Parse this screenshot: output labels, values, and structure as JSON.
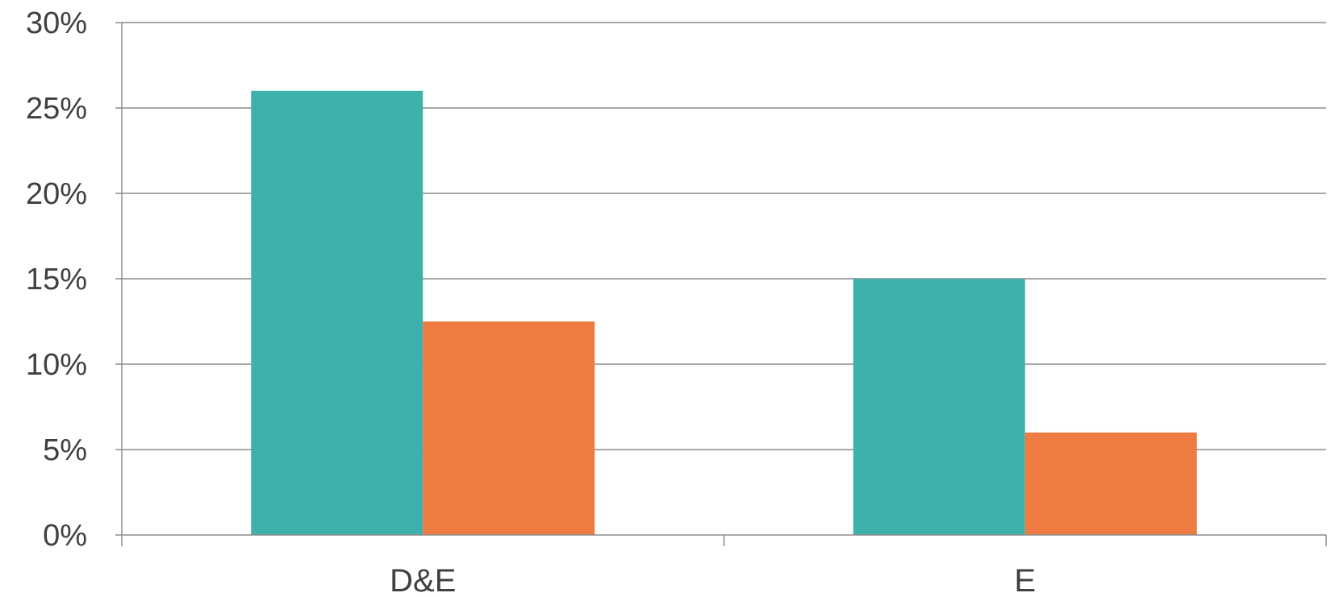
{
  "chart_data": {
    "type": "bar",
    "categories": [
      "D&E",
      "E"
    ],
    "series": [
      {
        "values": [
          26,
          15
        ],
        "color": "#3db1ac"
      },
      {
        "values": [
          12.5,
          6
        ],
        "color": "#ee7c42"
      }
    ],
    "ylim": [
      0,
      30
    ],
    "y_ticks": [
      {
        "value": 0,
        "label": "0%"
      },
      {
        "value": 5,
        "label": "5%"
      },
      {
        "value": 10,
        "label": "10%"
      },
      {
        "value": 15,
        "label": "15%"
      },
      {
        "value": 20,
        "label": "20%"
      },
      {
        "value": 25,
        "label": "25%"
      },
      {
        "value": 30,
        "label": "30%"
      }
    ],
    "grid": true,
    "legend": "none",
    "colors": {
      "grid": "#8c8c8c",
      "axis": "#8c8c8c",
      "text": "#404040"
    }
  }
}
